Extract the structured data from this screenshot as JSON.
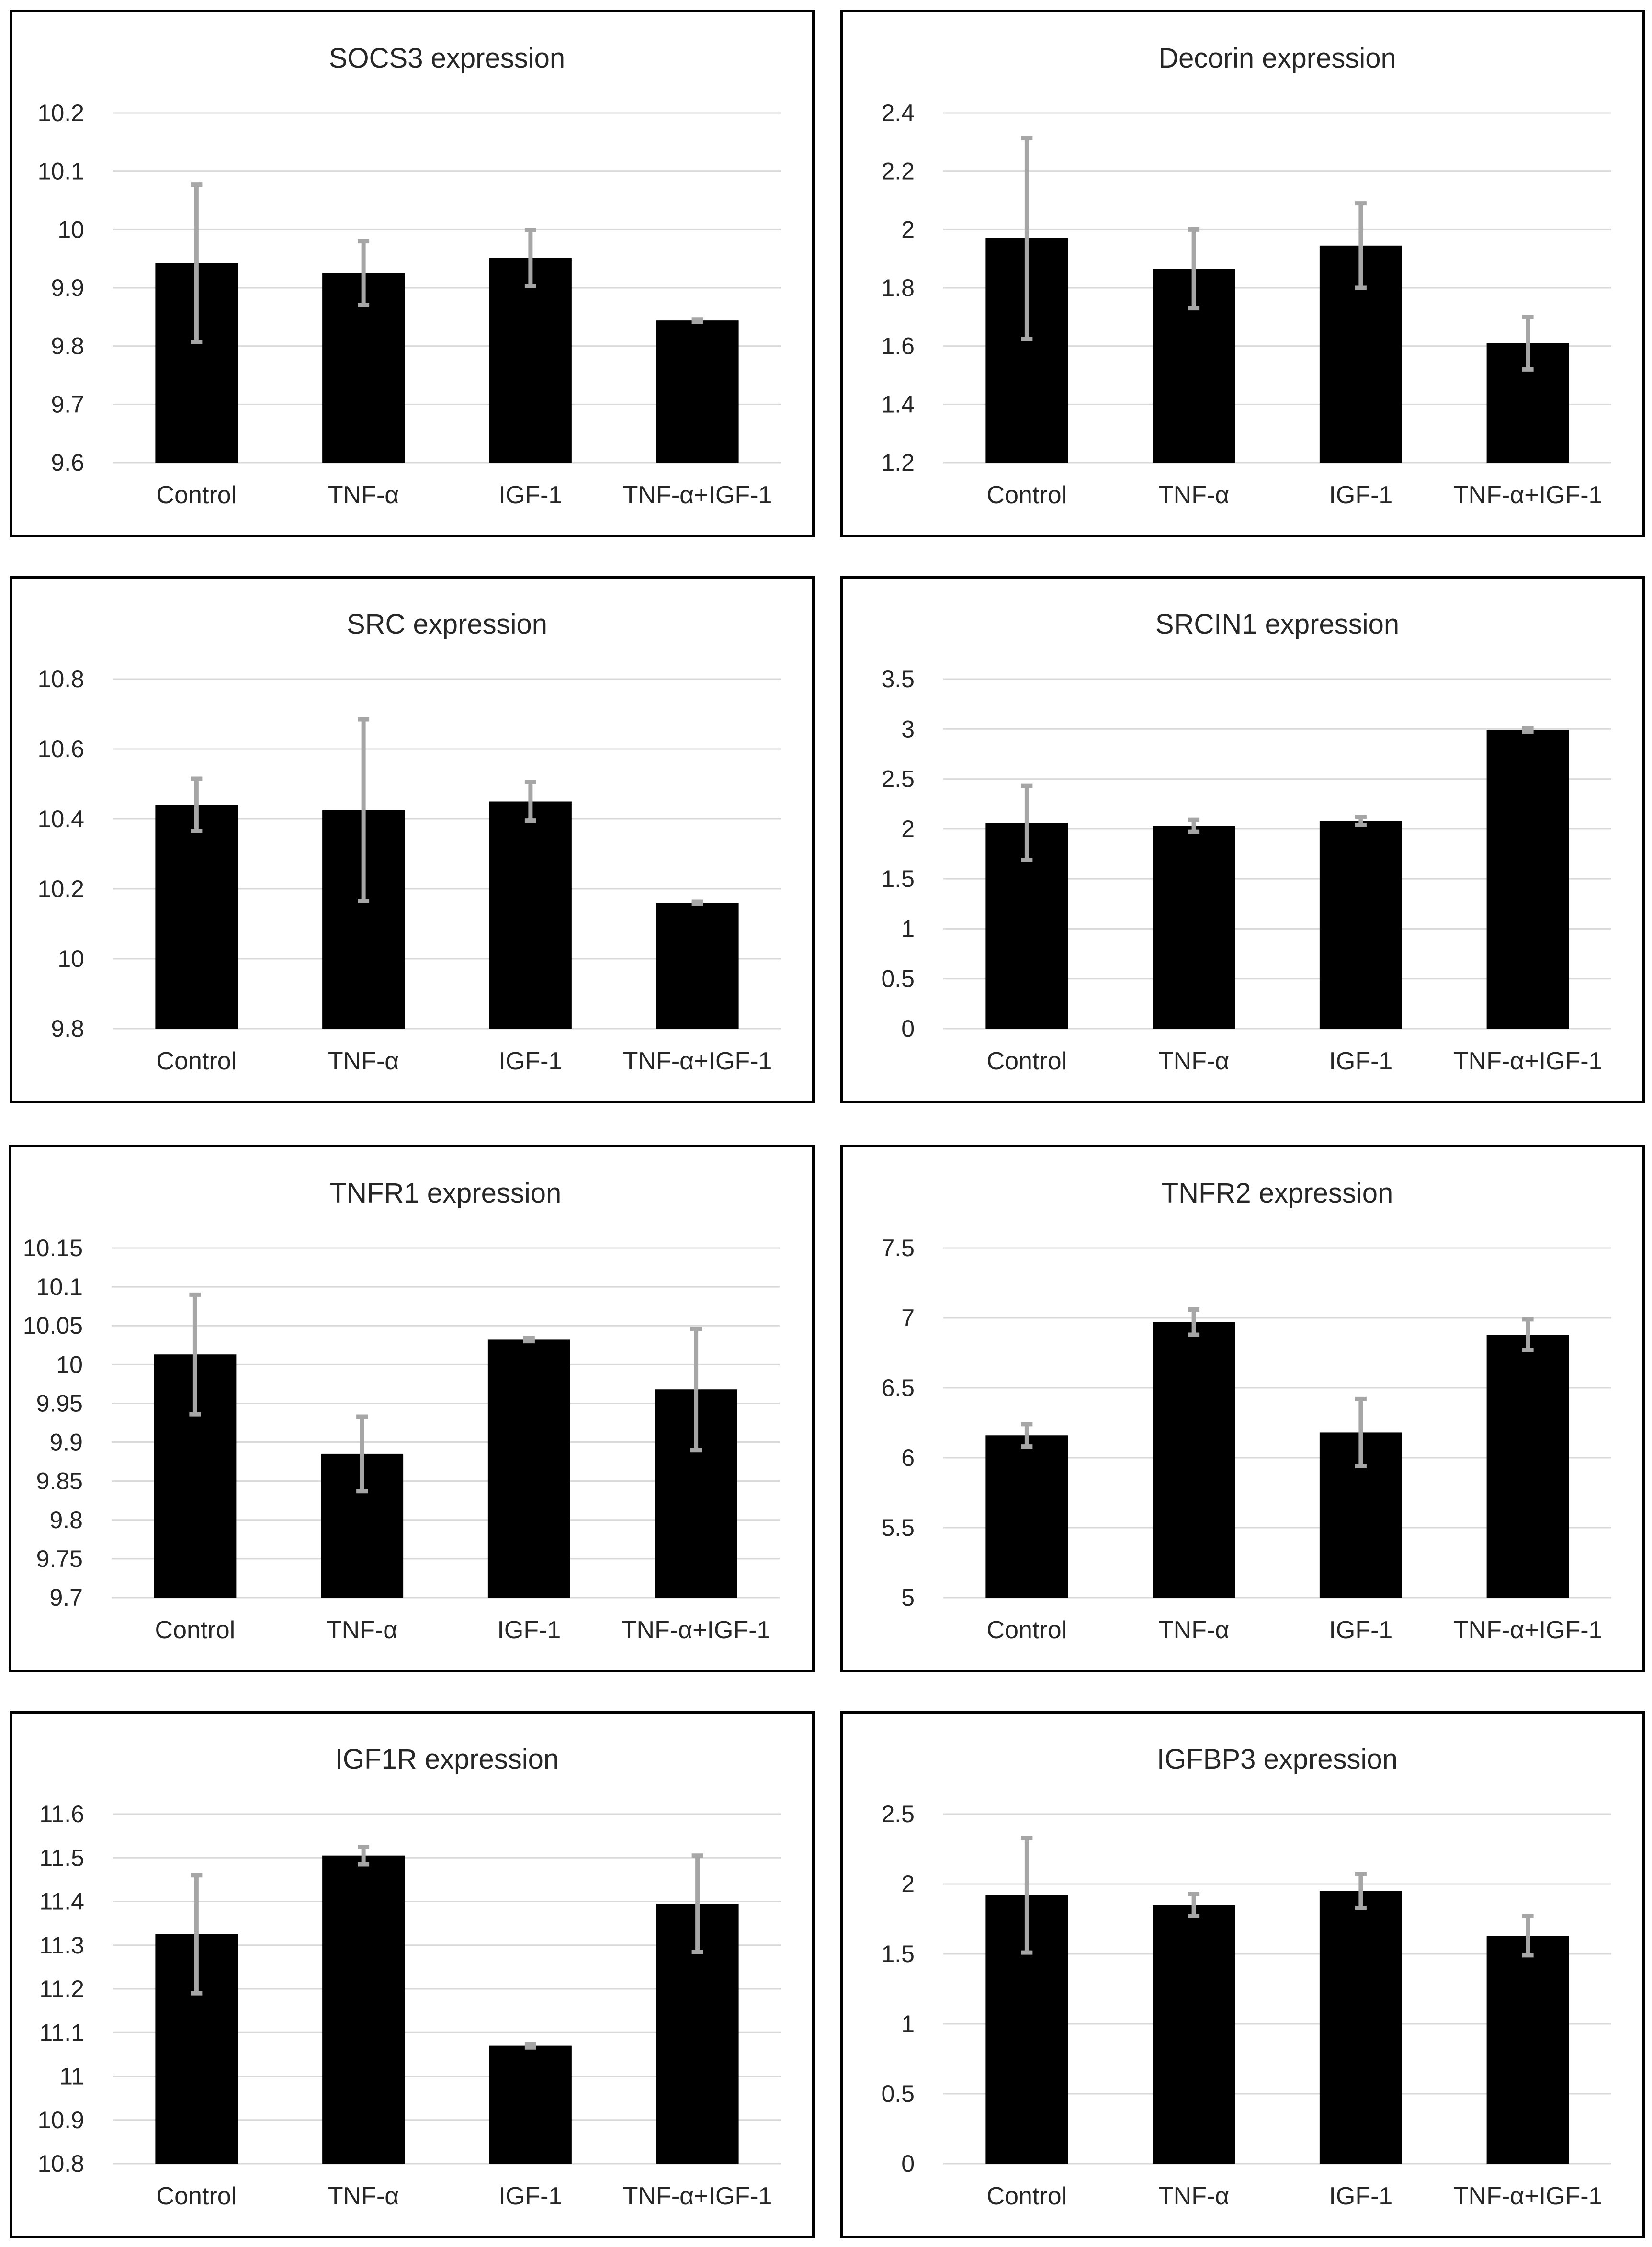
{
  "chart_data": [
    {
      "type": "bar",
      "title": "SOCS3 expression",
      "categories": [
        "Control",
        "TNF-α",
        "IGF-1",
        "TNF-α+IGF-1"
      ],
      "values": [
        9.942,
        9.925,
        9.951,
        9.844
      ],
      "errors": [
        0.135,
        0.055,
        0.048,
        0.002
      ],
      "ylim": [
        9.6,
        10.2
      ],
      "yticks": [
        "9.6",
        "9.7",
        "9.8",
        "9.9",
        "10",
        "10.1",
        "10.2"
      ],
      "grid": true,
      "bar_color": "#000000",
      "error_color": "#a6a6a6"
    },
    {
      "type": "bar",
      "title": "Decorin expression",
      "categories": [
        "Control",
        "TNF-α",
        "IGF-1",
        "TNF-α+IGF-1"
      ],
      "values": [
        1.97,
        1.865,
        1.945,
        1.61
      ],
      "errors": [
        0.345,
        0.135,
        0.145,
        0.09
      ],
      "ylim": [
        1.2,
        2.4
      ],
      "yticks": [
        "1.2",
        "1.4",
        "1.6",
        "1.8",
        "2",
        "2.2",
        "2.4"
      ],
      "grid": true,
      "bar_color": "#000000",
      "error_color": "#a6a6a6"
    },
    {
      "type": "bar",
      "title": "SRC expression",
      "categories": [
        "Control",
        "TNF-α",
        "IGF-1",
        "TNF-α+IGF-1"
      ],
      "values": [
        10.44,
        10.425,
        10.45,
        10.16
      ],
      "errors": [
        0.075,
        0.26,
        0.055,
        0.003
      ],
      "ylim": [
        9.8,
        10.8
      ],
      "yticks": [
        "9.8",
        "10",
        "10.2",
        "10.4",
        "10.6",
        "10.8"
      ],
      "grid": true,
      "bar_color": "#000000",
      "error_color": "#a6a6a6"
    },
    {
      "type": "bar",
      "title": "SRCIN1 expression",
      "categories": [
        "Control",
        "TNF-α",
        "IGF-1",
        "TNF-α+IGF-1"
      ],
      "values": [
        2.06,
        2.03,
        2.08,
        2.99
      ],
      "errors": [
        0.37,
        0.06,
        0.04,
        0.02
      ],
      "ylim": [
        0,
        3.5
      ],
      "yticks": [
        "0",
        "0.5",
        "1",
        "1.5",
        "2",
        "2.5",
        "3",
        "3.5"
      ],
      "grid": true,
      "bar_color": "#000000",
      "error_color": "#a6a6a6"
    },
    {
      "type": "bar",
      "title": "TNFR1 expression",
      "categories": [
        "Control",
        "TNF-α",
        "IGF-1",
        "TNF-α+IGF-1"
      ],
      "values": [
        10.013,
        9.885,
        10.032,
        9.968
      ],
      "errors": [
        0.077,
        0.048,
        0.002,
        0.078
      ],
      "ylim": [
        9.7,
        10.15
      ],
      "yticks": [
        "9.7",
        "9.75",
        "9.8",
        "9.85",
        "9.9",
        "9.95",
        "10",
        "10.05",
        "10.1",
        "10.15"
      ],
      "grid": true,
      "bar_color": "#000000",
      "error_color": "#a6a6a6"
    },
    {
      "type": "bar",
      "title": "TNFR2 expression",
      "categories": [
        "Control",
        "TNF-α",
        "IGF-1",
        "TNF-α+IGF-1"
      ],
      "values": [
        6.16,
        6.97,
        6.18,
        6.88
      ],
      "errors": [
        0.08,
        0.09,
        0.24,
        0.11
      ],
      "ylim": [
        5,
        7.5
      ],
      "yticks": [
        "5",
        "5.5",
        "6",
        "6.5",
        "7",
        "7.5"
      ],
      "grid": true,
      "bar_color": "#000000",
      "error_color": "#a6a6a6"
    },
    {
      "type": "bar",
      "title": "IGF1R expression",
      "categories": [
        "Control",
        "TNF-α",
        "IGF-1",
        "TNF-α+IGF-1"
      ],
      "values": [
        11.325,
        11.505,
        11.07,
        11.395
      ],
      "errors": [
        0.135,
        0.02,
        0.004,
        0.11
      ],
      "ylim": [
        10.8,
        11.6
      ],
      "yticks": [
        "10.8",
        "10.9",
        "11",
        "11.1",
        "11.2",
        "11.3",
        "11.4",
        "11.5",
        "11.6"
      ],
      "grid": true,
      "bar_color": "#000000",
      "error_color": "#a6a6a6"
    },
    {
      "type": "bar",
      "title": "IGFBP3 expression",
      "categories": [
        "Control",
        "TNF-α",
        "IGF-1",
        "TNF-α+IGF-1"
      ],
      "values": [
        1.92,
        1.85,
        1.95,
        1.63
      ],
      "errors": [
        0.41,
        0.08,
        0.12,
        0.14
      ],
      "ylim": [
        0,
        2.5
      ],
      "yticks": [
        "0",
        "0.5",
        "1",
        "1.5",
        "2",
        "2.5"
      ],
      "grid": true,
      "bar_color": "#000000",
      "error_color": "#a6a6a6"
    }
  ]
}
